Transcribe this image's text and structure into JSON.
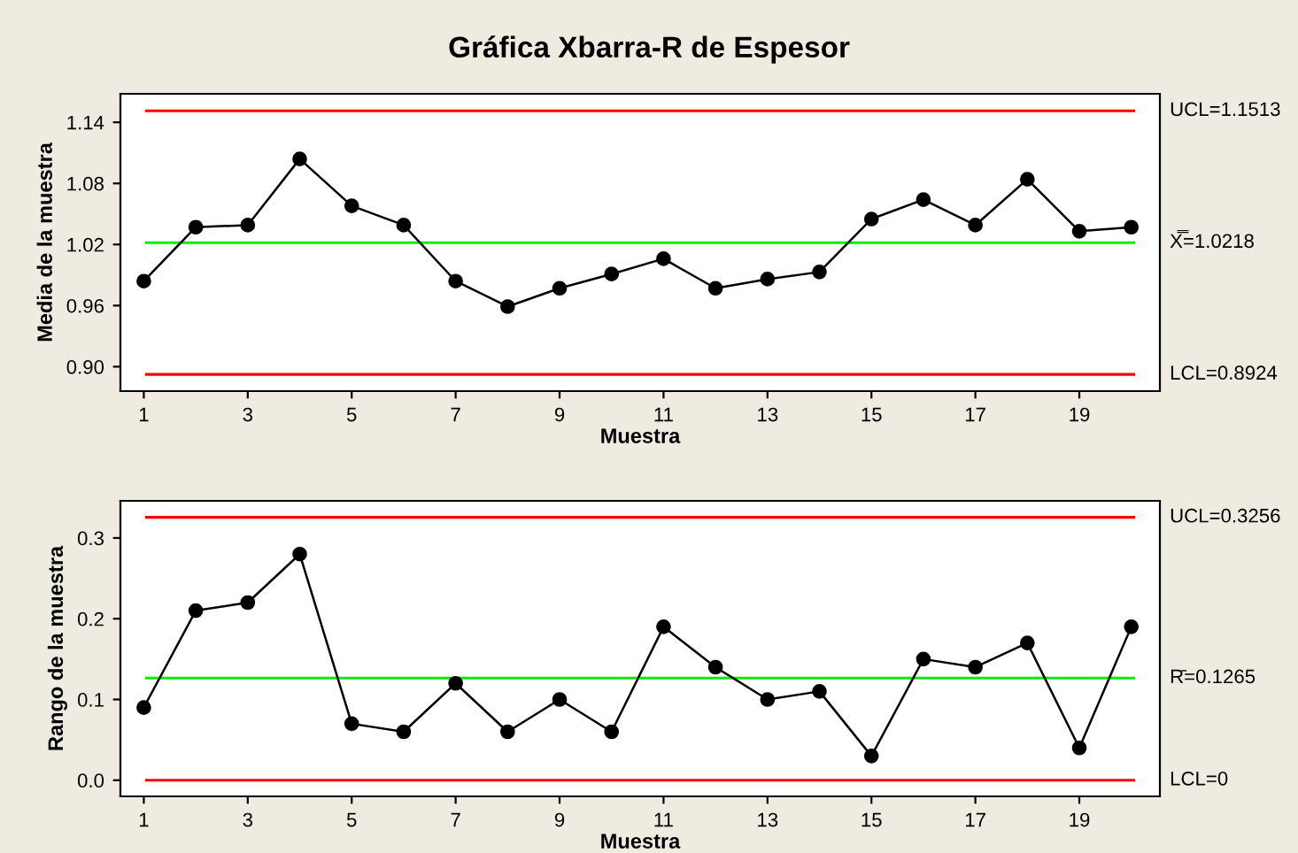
{
  "chart_data": [
    {
      "type": "line",
      "title": "Gráfica Xbarra-R de Espesor",
      "xlabel": "Muestra",
      "ylabel": "Media de la muestra",
      "x": [
        1,
        2,
        3,
        4,
        5,
        6,
        7,
        8,
        9,
        10,
        11,
        12,
        13,
        14,
        15,
        16,
        17,
        18,
        19,
        20
      ],
      "series": [
        {
          "color": "#000000",
          "values": [
            0.984,
            1.037,
            1.039,
            1.104,
            1.058,
            1.039,
            0.984,
            0.959,
            0.977,
            0.991,
            1.006,
            0.977,
            0.986,
            0.993,
            1.045,
            1.064,
            1.039,
            1.084,
            1.033,
            1.037
          ]
        }
      ],
      "xlim": [
        0.55,
        20.55
      ],
      "xticks": [
        1,
        3,
        5,
        7,
        9,
        11,
        13,
        15,
        17,
        19
      ],
      "ylim": [
        0.876,
        1.168
      ],
      "yticks": [
        {
          "value": 0.9,
          "label": "0.90"
        },
        0.96,
        1.02,
        1.08,
        1.14
      ],
      "ref_lines": [
        {
          "axis": "y",
          "value": 1.1513,
          "label": "UCL=1.1513",
          "color": "#ff0000"
        },
        {
          "axis": "y",
          "value": 1.0218,
          "label": "X̿=1.0218",
          "color": "#00ee00"
        },
        {
          "axis": "y",
          "value": 0.8924,
          "label": "LCL=0.8924",
          "color": "#ff0000"
        }
      ],
      "marker": "circle",
      "line_style": "solid",
      "grid": false,
      "legend": false
    },
    {
      "type": "line",
      "xlabel": "Muestra",
      "ylabel": "Rango de la muestra",
      "x": [
        1,
        2,
        3,
        4,
        5,
        6,
        7,
        8,
        9,
        10,
        11,
        12,
        13,
        14,
        15,
        16,
        17,
        18,
        19,
        20
      ],
      "series": [
        {
          "color": "#000000",
          "values": [
            0.09,
            0.21,
            0.22,
            0.28,
            0.07,
            0.06,
            0.12,
            0.06,
            0.1,
            0.06,
            0.19,
            0.14,
            0.1,
            0.11,
            0.03,
            0.15,
            0.14,
            0.17,
            0.04,
            0.19
          ]
        }
      ],
      "xlim": [
        0.55,
        20.55
      ],
      "xticks": [
        1,
        3,
        5,
        7,
        9,
        11,
        13,
        15,
        17,
        19
      ],
      "ylim": [
        -0.02,
        0.346
      ],
      "yticks": [
        {
          "value": 0.0,
          "label": "0.0"
        },
        {
          "value": 0.1,
          "label": "0.1"
        },
        {
          "value": 0.2,
          "label": "0.2"
        },
        {
          "value": 0.3,
          "label": "0.3"
        }
      ],
      "ref_lines": [
        {
          "axis": "y",
          "value": 0.3256,
          "label": "UCL=0.3256",
          "color": "#ff0000"
        },
        {
          "axis": "y",
          "value": 0.1265,
          "label": "R̄=0.1265",
          "color": "#00ee00"
        },
        {
          "axis": "y",
          "value": 0,
          "label": "LCL=0",
          "color": "#ff0000"
        }
      ],
      "marker": "circle",
      "line_style": "solid",
      "grid": false,
      "legend": false
    }
  ]
}
